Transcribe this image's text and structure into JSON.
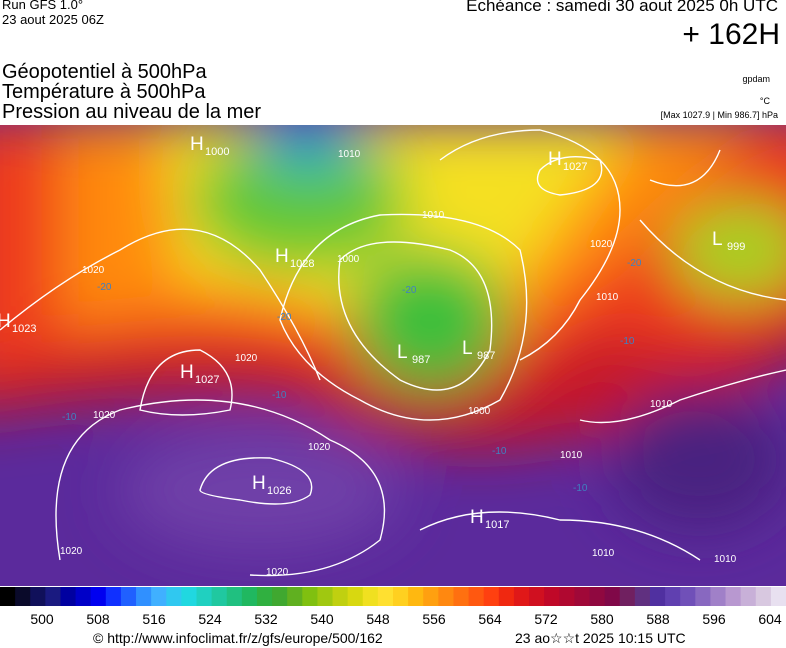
{
  "header": {
    "run": "Run GFS 1.0°",
    "date": "23 aout 2025 06Z",
    "echeance": "Echéance : samedi 30 aout 2025 0h UTC",
    "lead": "+ 162H",
    "fields": [
      "Géopotentiel à 500hPa",
      "Température à 500hPa",
      "Pression au niveau de la mer"
    ],
    "units": [
      "gpdam",
      "°C",
      "[Max 1027.9 | Min 986.7] hPa"
    ]
  },
  "centers": [
    {
      "type": "H",
      "value": "1000"
    },
    {
      "type": "H",
      "value": "1027"
    },
    {
      "type": "H",
      "value": "1028"
    },
    {
      "type": "L",
      "value": "999"
    },
    {
      "type": "H",
      "value": "1023"
    },
    {
      "type": "H",
      "value": "1027"
    },
    {
      "type": "L",
      "value": "987"
    },
    {
      "type": "L",
      "value": "987"
    },
    {
      "type": "H",
      "value": "1026"
    },
    {
      "type": "H",
      "value": "1017"
    }
  ],
  "isobar_labels": [
    "1010",
    "1010",
    "1000",
    "1020",
    "1010",
    "1020",
    "1020",
    "1020",
    "1020",
    "1000",
    "1010",
    "1010",
    "1020",
    "1020",
    "1010",
    "1010"
  ],
  "temperature_labels": [
    "-20",
    "-20",
    "-20",
    "-20",
    "-10",
    "-10",
    "-10",
    "-10",
    "-10"
  ],
  "colorbar": {
    "ticks": [
      500,
      508,
      516,
      524,
      532,
      540,
      548,
      556,
      564,
      572,
      580,
      588,
      596,
      604
    ]
  },
  "footer": {
    "source": "© http://www.infoclimat.fr/z/gfs/europe/500/162",
    "time": "23 ao☆☆t 2025 10:15 UTC"
  }
}
